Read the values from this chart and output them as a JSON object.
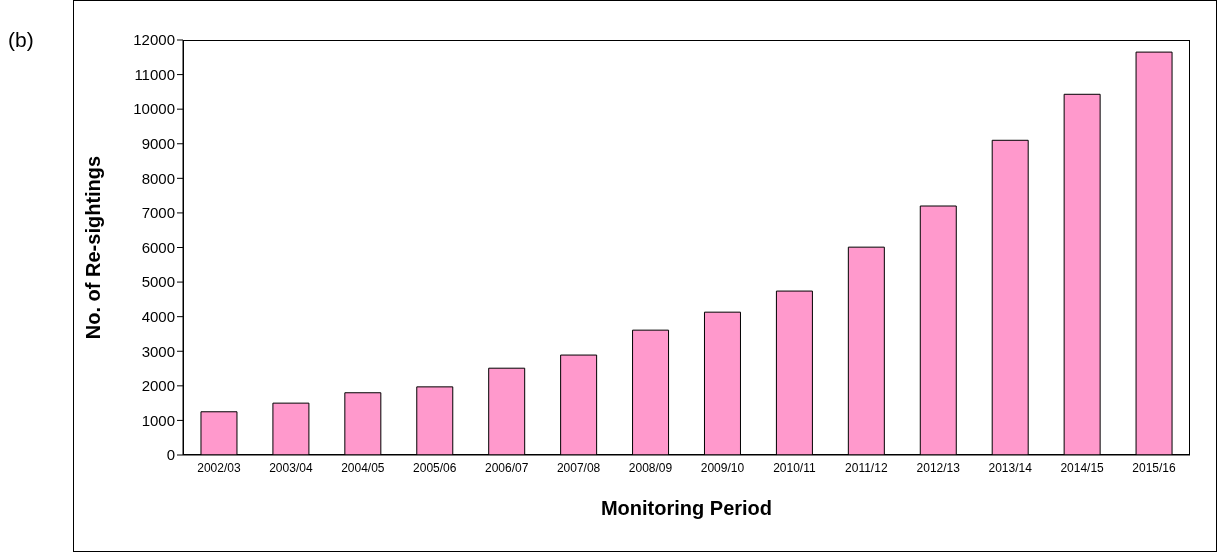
{
  "chart_data": {
    "type": "bar",
    "xlabel": "Monitoring Period",
    "ylabel": "No. of Re-sightings",
    "annotations": [
      "(b)"
    ],
    "categories": [
      "2002/03",
      "2003/04",
      "2004/05",
      "2005/06",
      "2006/07",
      "2007/08",
      "2008/09",
      "2009/10",
      "2010/11",
      "2011/12",
      "2012/13",
      "2013/14",
      "2014/15",
      "2015/16"
    ],
    "values": [
      1250,
      1500,
      1800,
      1970,
      2510,
      2890,
      3610,
      4130,
      4740,
      6010,
      7200,
      9100,
      10430,
      11650
    ],
    "color": "#ff99cc",
    "ylim": [
      0,
      12000
    ],
    "yticks": [
      0,
      1000,
      2000,
      3000,
      4000,
      5000,
      6000,
      7000,
      8000,
      9000,
      10000,
      11000,
      12000
    ],
    "grid": false,
    "legend": false
  }
}
